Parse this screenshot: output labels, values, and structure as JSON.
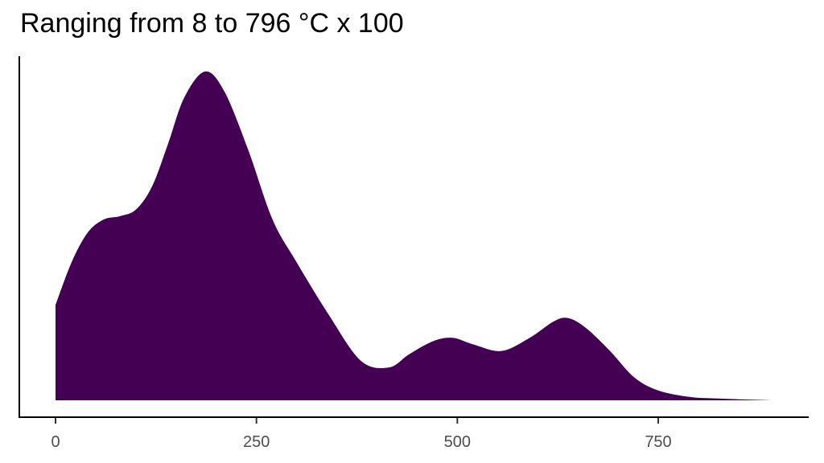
{
  "chart_data": {
    "type": "area",
    "title": "Ranging from 8 to 796 °C x 100",
    "xlabel": "",
    "ylabel": "",
    "xlim": [
      -45,
      960
    ],
    "x_ticks": [
      0,
      250,
      500,
      750
    ],
    "x_tick_labels": [
      "0",
      "250",
      "500",
      "750"
    ],
    "y_ticks": [],
    "grid": false,
    "legend": null,
    "fill_color": "#440154",
    "x": [
      0,
      20,
      40,
      60,
      80,
      100,
      120,
      140,
      160,
      186,
      210,
      240,
      270,
      300,
      340,
      380,
      415,
      440,
      470,
      494,
      520,
      555,
      590,
      620,
      638,
      660,
      690,
      720,
      750,
      790,
      830,
      893
    ],
    "density_relative": [
      0.29,
      0.42,
      0.51,
      0.55,
      0.56,
      0.58,
      0.65,
      0.78,
      0.92,
      1.0,
      0.94,
      0.76,
      0.55,
      0.42,
      0.26,
      0.12,
      0.1,
      0.14,
      0.18,
      0.19,
      0.17,
      0.15,
      0.19,
      0.24,
      0.25,
      0.22,
      0.15,
      0.07,
      0.03,
      0.01,
      0.005,
      0.0
    ]
  }
}
